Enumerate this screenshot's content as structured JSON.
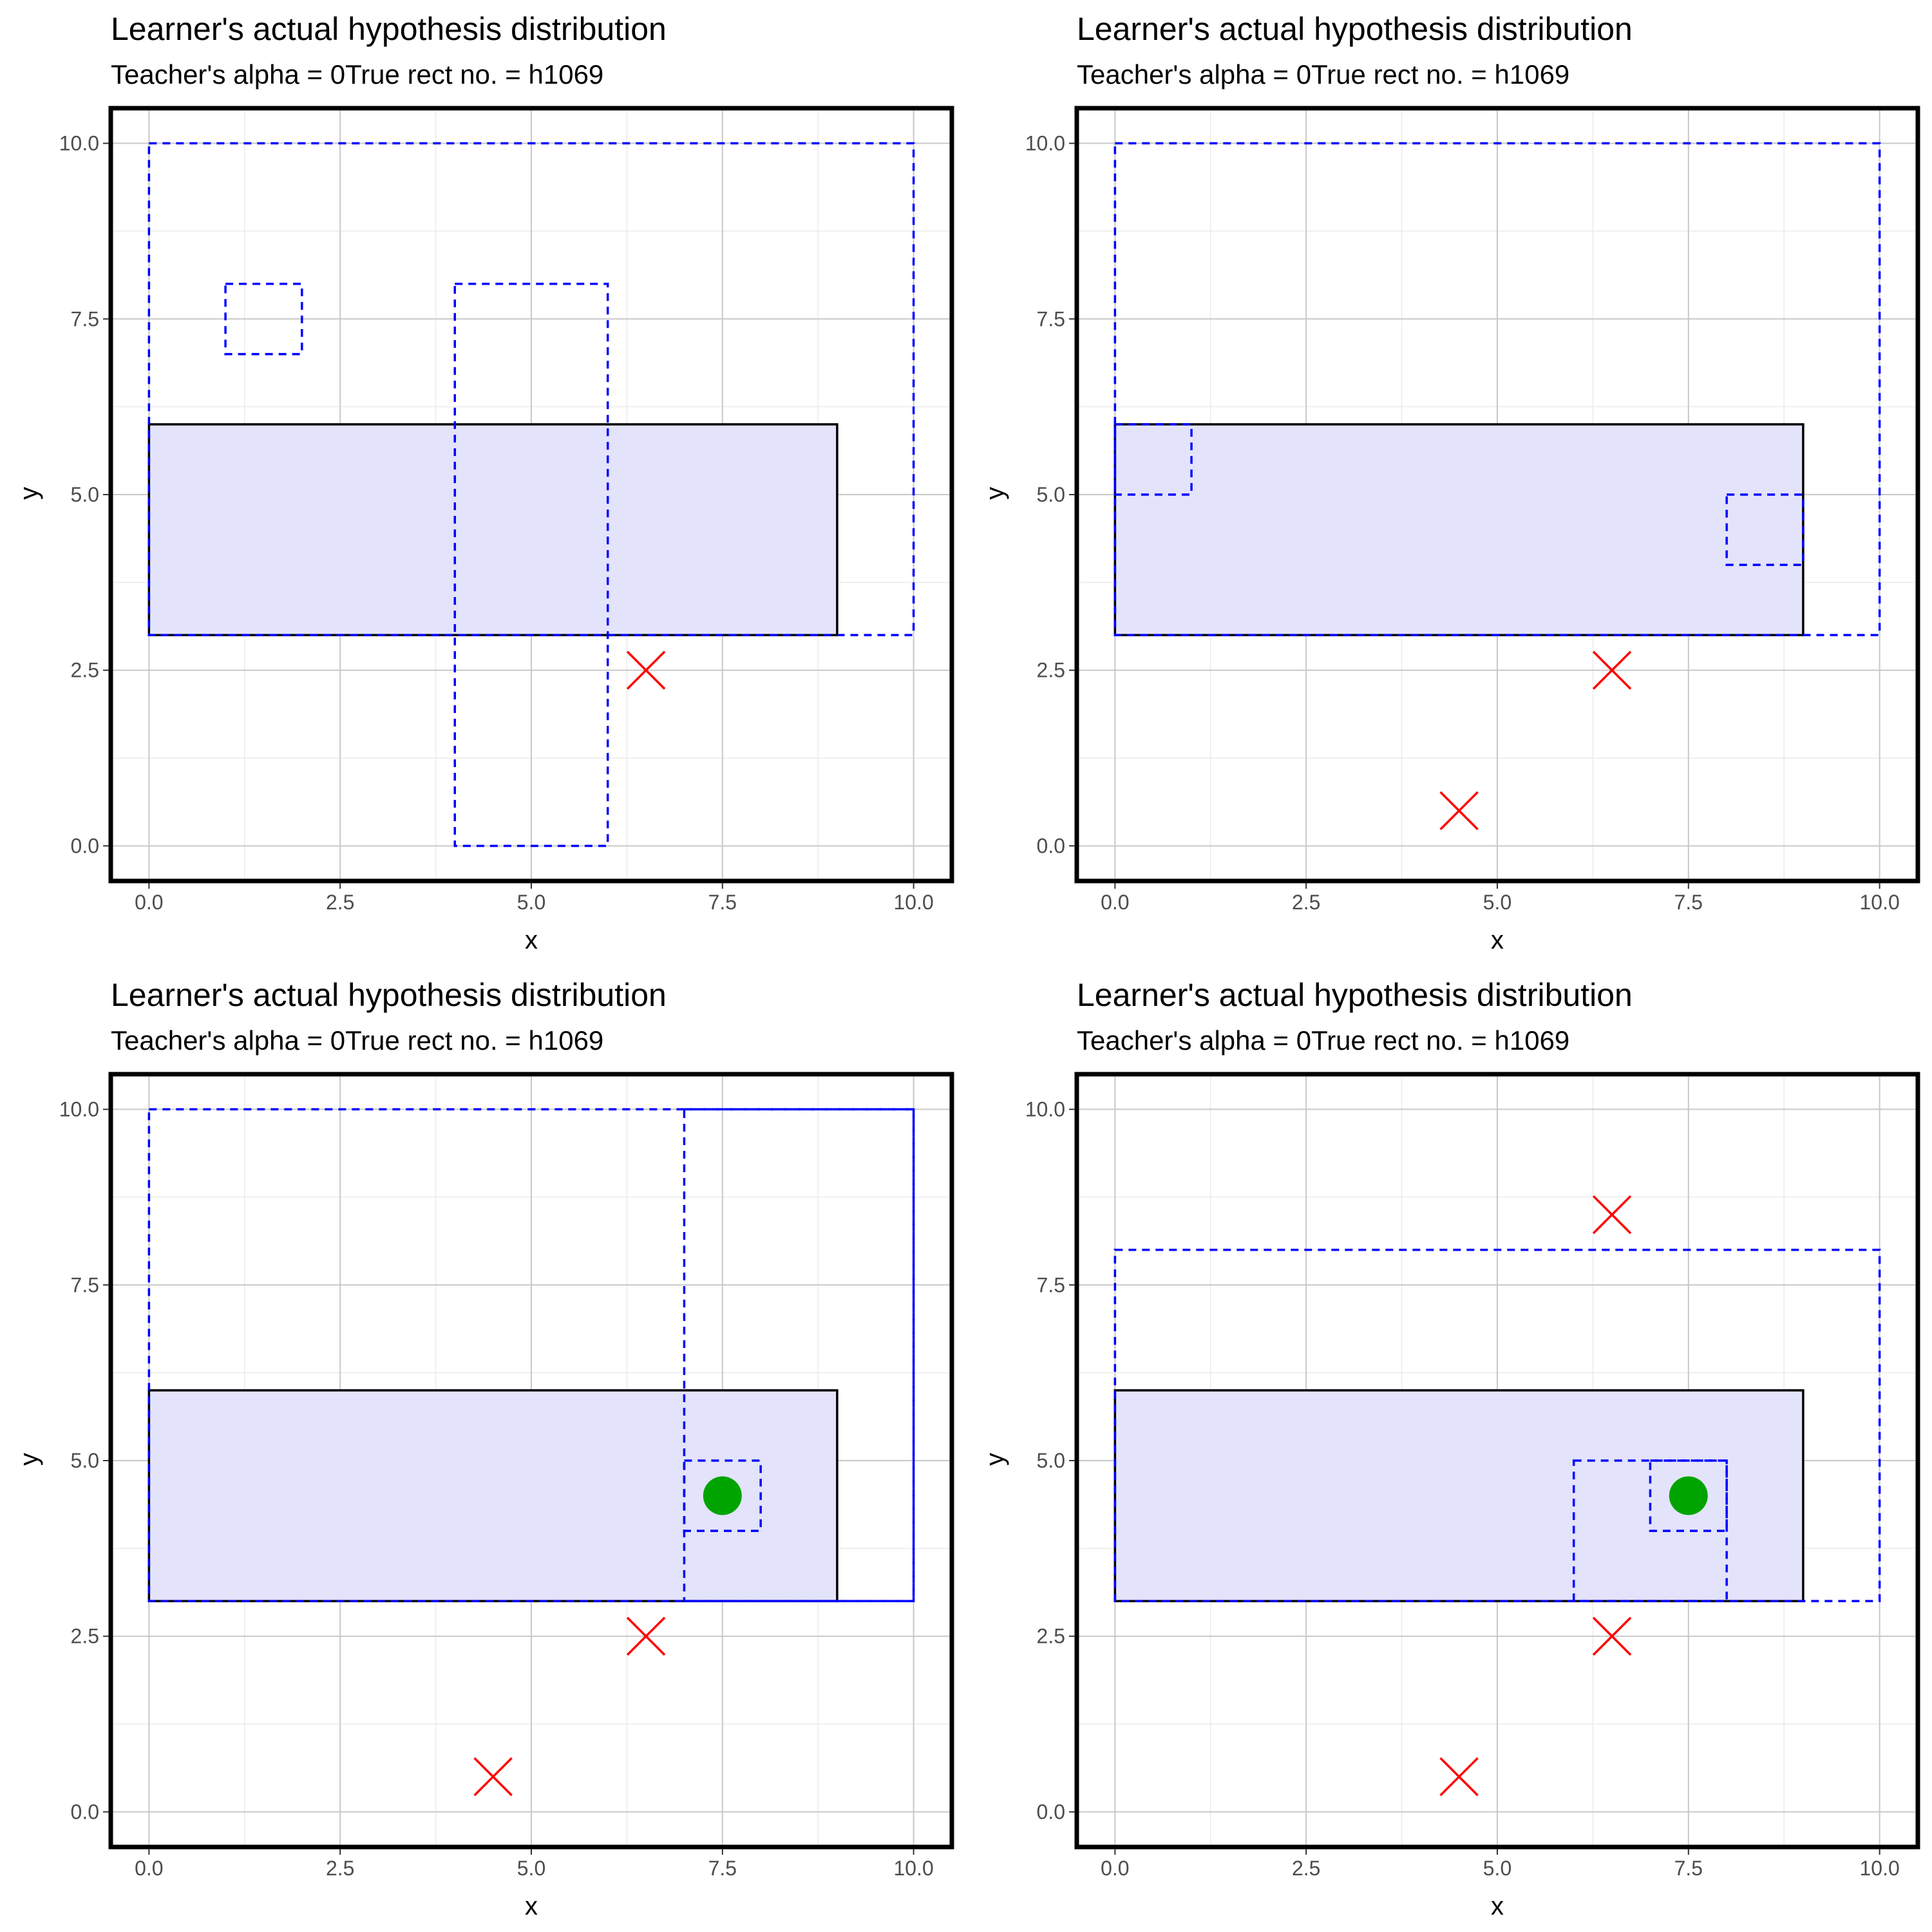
{
  "colors": {
    "true_rect_fill": "#e3e3fb",
    "true_rect_stroke": "#000000",
    "hypothesis_stroke": "#0000ff",
    "negative_point": "#ff0000",
    "positive_point": "#00a400",
    "grid_major": "#c8c8c8",
    "grid_minor": "#ebebeb",
    "panel_border": "#000000"
  },
  "chart_data": [
    {
      "type": "scatter",
      "title": "Learner's actual hypothesis distribution",
      "subtitle": "Teacher's alpha = 0True rect no. = h1069",
      "xlabel": "x",
      "ylabel": "y",
      "xlim": [
        -0.5,
        10.5
      ],
      "ylim": [
        -0.5,
        10.5
      ],
      "x_ticks": [
        "0.0",
        "2.5",
        "5.0",
        "7.5",
        "10.0"
      ],
      "y_ticks": [
        "0.0",
        "2.5",
        "5.0",
        "7.5",
        "10.0"
      ],
      "grid": true,
      "true_rect": {
        "x0": 0,
        "x1": 9,
        "y0": 3,
        "y1": 6
      },
      "hypotheses": [
        {
          "x0": 0,
          "x1": 10,
          "y0": 3,
          "y1": 10
        },
        {
          "x0": 1,
          "x1": 2,
          "y0": 7,
          "y1": 8
        },
        {
          "x0": 4,
          "x1": 6,
          "y0": 0,
          "y1": 8
        }
      ],
      "positive_points": [],
      "negative_points": [
        {
          "x": 6.5,
          "y": 2.5
        }
      ]
    },
    {
      "type": "scatter",
      "title": "Learner's actual hypothesis distribution",
      "subtitle": "Teacher's alpha = 0True rect no. = h1069",
      "xlabel": "x",
      "ylabel": "y",
      "xlim": [
        -0.5,
        10.5
      ],
      "ylim": [
        -0.5,
        10.5
      ],
      "x_ticks": [
        "0.0",
        "2.5",
        "5.0",
        "7.5",
        "10.0"
      ],
      "y_ticks": [
        "0.0",
        "2.5",
        "5.0",
        "7.5",
        "10.0"
      ],
      "grid": true,
      "true_rect": {
        "x0": 0,
        "x1": 9,
        "y0": 3,
        "y1": 6
      },
      "hypotheses": [
        {
          "x0": 0,
          "x1": 10,
          "y0": 3,
          "y1": 10
        },
        {
          "x0": 0,
          "x1": 1,
          "y0": 5,
          "y1": 6
        },
        {
          "x0": 8,
          "x1": 9,
          "y0": 4,
          "y1": 5
        }
      ],
      "positive_points": [],
      "negative_points": [
        {
          "x": 6.5,
          "y": 2.5
        },
        {
          "x": 4.5,
          "y": 0.5
        }
      ]
    },
    {
      "type": "scatter",
      "title": "Learner's actual hypothesis distribution",
      "subtitle": "Teacher's alpha = 0True rect no. = h1069",
      "xlabel": "x",
      "ylabel": "y",
      "xlim": [
        -0.5,
        10.5
      ],
      "ylim": [
        -0.5,
        10.5
      ],
      "x_ticks": [
        "0.0",
        "2.5",
        "5.0",
        "7.5",
        "10.0"
      ],
      "y_ticks": [
        "0.0",
        "2.5",
        "5.0",
        "7.5",
        "10.0"
      ],
      "grid": true,
      "true_rect": {
        "x0": 0,
        "x1": 9,
        "y0": 3,
        "y1": 6
      },
      "hypotheses": [
        {
          "x0": 0,
          "x1": 10,
          "y0": 3,
          "y1": 10
        },
        {
          "x0": 7,
          "x1": 10,
          "y0": 3,
          "y1": 10
        },
        {
          "x0": 7,
          "x1": 8,
          "y0": 4,
          "y1": 5
        }
      ],
      "positive_points": [
        {
          "x": 7.5,
          "y": 4.5
        }
      ],
      "negative_points": [
        {
          "x": 6.5,
          "y": 2.5
        },
        {
          "x": 4.5,
          "y": 0.5
        }
      ]
    },
    {
      "type": "scatter",
      "title": "Learner's actual hypothesis distribution",
      "subtitle": "Teacher's alpha = 0True rect no. = h1069",
      "xlabel": "x",
      "ylabel": "y",
      "xlim": [
        -0.5,
        10.5
      ],
      "ylim": [
        -0.5,
        10.5
      ],
      "x_ticks": [
        "0.0",
        "2.5",
        "5.0",
        "7.5",
        "10.0"
      ],
      "y_ticks": [
        "0.0",
        "2.5",
        "5.0",
        "7.5",
        "10.0"
      ],
      "grid": true,
      "true_rect": {
        "x0": 0,
        "x1": 9,
        "y0": 3,
        "y1": 6
      },
      "hypotheses": [
        {
          "x0": 0,
          "x1": 10,
          "y0": 3,
          "y1": 8
        },
        {
          "x0": 6,
          "x1": 8,
          "y0": 3,
          "y1": 5
        },
        {
          "x0": 7,
          "x1": 8,
          "y0": 4,
          "y1": 5
        }
      ],
      "positive_points": [
        {
          "x": 7.5,
          "y": 4.5
        }
      ],
      "negative_points": [
        {
          "x": 6.5,
          "y": 8.5
        },
        {
          "x": 6.5,
          "y": 2.5
        },
        {
          "x": 4.5,
          "y": 0.5
        }
      ]
    }
  ]
}
